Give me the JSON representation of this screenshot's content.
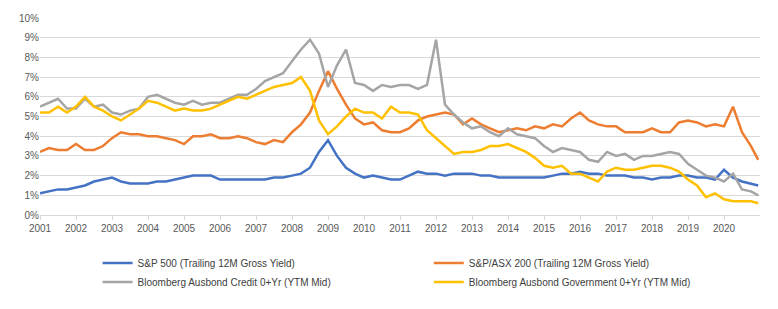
{
  "chart_data": {
    "type": "line",
    "x": [
      2001,
      2001.25,
      2001.5,
      2001.75,
      2002,
      2002.25,
      2002.5,
      2002.75,
      2003,
      2003.25,
      2003.5,
      2003.75,
      2004,
      2004.25,
      2004.5,
      2004.75,
      2005,
      2005.25,
      2005.5,
      2005.75,
      2006,
      2006.25,
      2006.5,
      2006.75,
      2007,
      2007.25,
      2007.5,
      2007.75,
      2008,
      2008.25,
      2008.5,
      2008.75,
      2009,
      2009.25,
      2009.5,
      2009.75,
      2010,
      2010.25,
      2010.5,
      2010.75,
      2011,
      2011.25,
      2011.5,
      2011.75,
      2012,
      2012.25,
      2012.5,
      2012.75,
      2013,
      2013.25,
      2013.5,
      2013.75,
      2014,
      2014.25,
      2014.5,
      2014.75,
      2015,
      2015.25,
      2015.5,
      2015.75,
      2016,
      2016.25,
      2016.5,
      2016.75,
      2017,
      2017.25,
      2017.5,
      2017.75,
      2018,
      2018.25,
      2018.5,
      2018.75,
      2019,
      2019.25,
      2019.5,
      2019.75,
      2020,
      2020.25,
      2020.5,
      2020.75,
      2020.95
    ],
    "series": [
      {
        "name": "S&P 500 (Trailing 12M Gross Yield)",
        "color": "#4472C4",
        "values": [
          1.1,
          1.2,
          1.3,
          1.3,
          1.4,
          1.5,
          1.7,
          1.8,
          1.9,
          1.7,
          1.6,
          1.6,
          1.6,
          1.7,
          1.7,
          1.8,
          1.9,
          2.0,
          2.0,
          2.0,
          1.8,
          1.8,
          1.8,
          1.8,
          1.8,
          1.8,
          1.9,
          1.9,
          2.0,
          2.1,
          2.4,
          3.2,
          3.8,
          3.0,
          2.4,
          2.1,
          1.9,
          2.0,
          1.9,
          1.8,
          1.8,
          2.0,
          2.2,
          2.1,
          2.1,
          2.0,
          2.1,
          2.1,
          2.1,
          2.0,
          2.0,
          1.9,
          1.9,
          1.9,
          1.9,
          1.9,
          1.9,
          2.0,
          2.1,
          2.1,
          2.2,
          2.1,
          2.1,
          2.0,
          2.0,
          2.0,
          1.9,
          1.9,
          1.8,
          1.9,
          1.9,
          2.0,
          2.0,
          1.9,
          1.9,
          1.8,
          2.3,
          1.9,
          1.7,
          1.6,
          1.5
        ]
      },
      {
        "name": "S&P/ASX 200 (Trailing 12M Gross Yield)",
        "color": "#ED7D31",
        "values": [
          3.2,
          3.4,
          3.3,
          3.3,
          3.6,
          3.3,
          3.3,
          3.5,
          3.9,
          4.2,
          4.1,
          4.1,
          4.0,
          4.0,
          3.9,
          3.8,
          3.6,
          4.0,
          4.0,
          4.1,
          3.9,
          3.9,
          4.0,
          3.9,
          3.7,
          3.6,
          3.8,
          3.7,
          4.2,
          4.6,
          5.2,
          6.3,
          7.3,
          6.4,
          5.6,
          4.9,
          4.6,
          4.7,
          4.3,
          4.2,
          4.2,
          4.4,
          4.8,
          5.0,
          5.1,
          5.2,
          5.1,
          4.6,
          4.9,
          4.6,
          4.4,
          4.2,
          4.3,
          4.4,
          4.3,
          4.5,
          4.4,
          4.6,
          4.5,
          4.9,
          5.2,
          4.8,
          4.6,
          4.5,
          4.5,
          4.2,
          4.2,
          4.2,
          4.4,
          4.2,
          4.2,
          4.7,
          4.8,
          4.7,
          4.5,
          4.6,
          4.5,
          5.5,
          4.2,
          3.5,
          2.8
        ]
      },
      {
        "name": "Bloomberg Ausbond Credit 0+Yr (YTM Mid)",
        "color": "#A5A5A5",
        "values": [
          5.5,
          5.7,
          5.9,
          5.4,
          5.4,
          5.9,
          5.5,
          5.6,
          5.2,
          5.1,
          5.3,
          5.4,
          6.0,
          6.1,
          5.9,
          5.7,
          5.6,
          5.8,
          5.6,
          5.7,
          5.7,
          5.9,
          6.1,
          6.1,
          6.4,
          6.8,
          7.0,
          7.2,
          7.8,
          8.4,
          8.9,
          8.2,
          6.5,
          7.6,
          8.4,
          6.7,
          6.6,
          6.3,
          6.6,
          6.5,
          6.6,
          6.6,
          6.4,
          6.6,
          8.9,
          5.6,
          5.1,
          4.7,
          4.4,
          4.5,
          4.2,
          4.0,
          4.4,
          4.1,
          4.0,
          3.9,
          3.5,
          3.2,
          3.4,
          3.3,
          3.2,
          2.8,
          2.7,
          3.2,
          3.0,
          3.1,
          2.8,
          3.0,
          3.0,
          3.1,
          3.2,
          3.1,
          2.6,
          2.3,
          2.0,
          1.9,
          1.7,
          2.1,
          1.3,
          1.2,
          1.0
        ]
      },
      {
        "name": "Bloomberg Ausbond Government 0+Yr (YTM Mid)",
        "color": "#FFC000",
        "values": [
          5.2,
          5.2,
          5.5,
          5.2,
          5.5,
          6.0,
          5.5,
          5.3,
          5.0,
          4.8,
          5.1,
          5.4,
          5.8,
          5.7,
          5.5,
          5.3,
          5.4,
          5.3,
          5.3,
          5.4,
          5.6,
          5.8,
          6.0,
          5.9,
          6.1,
          6.3,
          6.5,
          6.6,
          6.7,
          7.0,
          6.3,
          4.8,
          4.1,
          4.5,
          5.0,
          5.4,
          5.2,
          5.2,
          4.9,
          5.5,
          5.2,
          5.2,
          5.1,
          4.3,
          3.9,
          3.5,
          3.1,
          3.2,
          3.2,
          3.3,
          3.5,
          3.5,
          3.6,
          3.4,
          3.2,
          2.9,
          2.5,
          2.4,
          2.5,
          2.1,
          2.1,
          1.9,
          1.7,
          2.2,
          2.4,
          2.3,
          2.3,
          2.4,
          2.5,
          2.5,
          2.4,
          2.2,
          1.8,
          1.5,
          0.9,
          1.1,
          0.8,
          0.7,
          0.7,
          0.7,
          0.6
        ]
      }
    ],
    "xlim": [
      2001,
      2021
    ],
    "xticks": [
      2001,
      2002,
      2003,
      2004,
      2005,
      2006,
      2007,
      2008,
      2009,
      2010,
      2011,
      2012,
      2013,
      2014,
      2015,
      2016,
      2017,
      2018,
      2019,
      2020
    ],
    "ylim": [
      0,
      10
    ],
    "yticks": [
      {
        "value": 0,
        "label": "0%"
      },
      {
        "value": 1,
        "label": "1%"
      },
      {
        "value": 2,
        "label": "2%"
      },
      {
        "value": 3,
        "label": "3%"
      },
      {
        "value": 4,
        "label": "4%"
      },
      {
        "value": 5,
        "label": "5%"
      },
      {
        "value": 6,
        "label": "6%"
      },
      {
        "value": 7,
        "label": "7%"
      },
      {
        "value": 8,
        "label": "8%"
      },
      {
        "value": 9,
        "label": "9%"
      },
      {
        "value": 10,
        "label": "10%"
      }
    ],
    "grid": true,
    "legend": "bottom"
  }
}
